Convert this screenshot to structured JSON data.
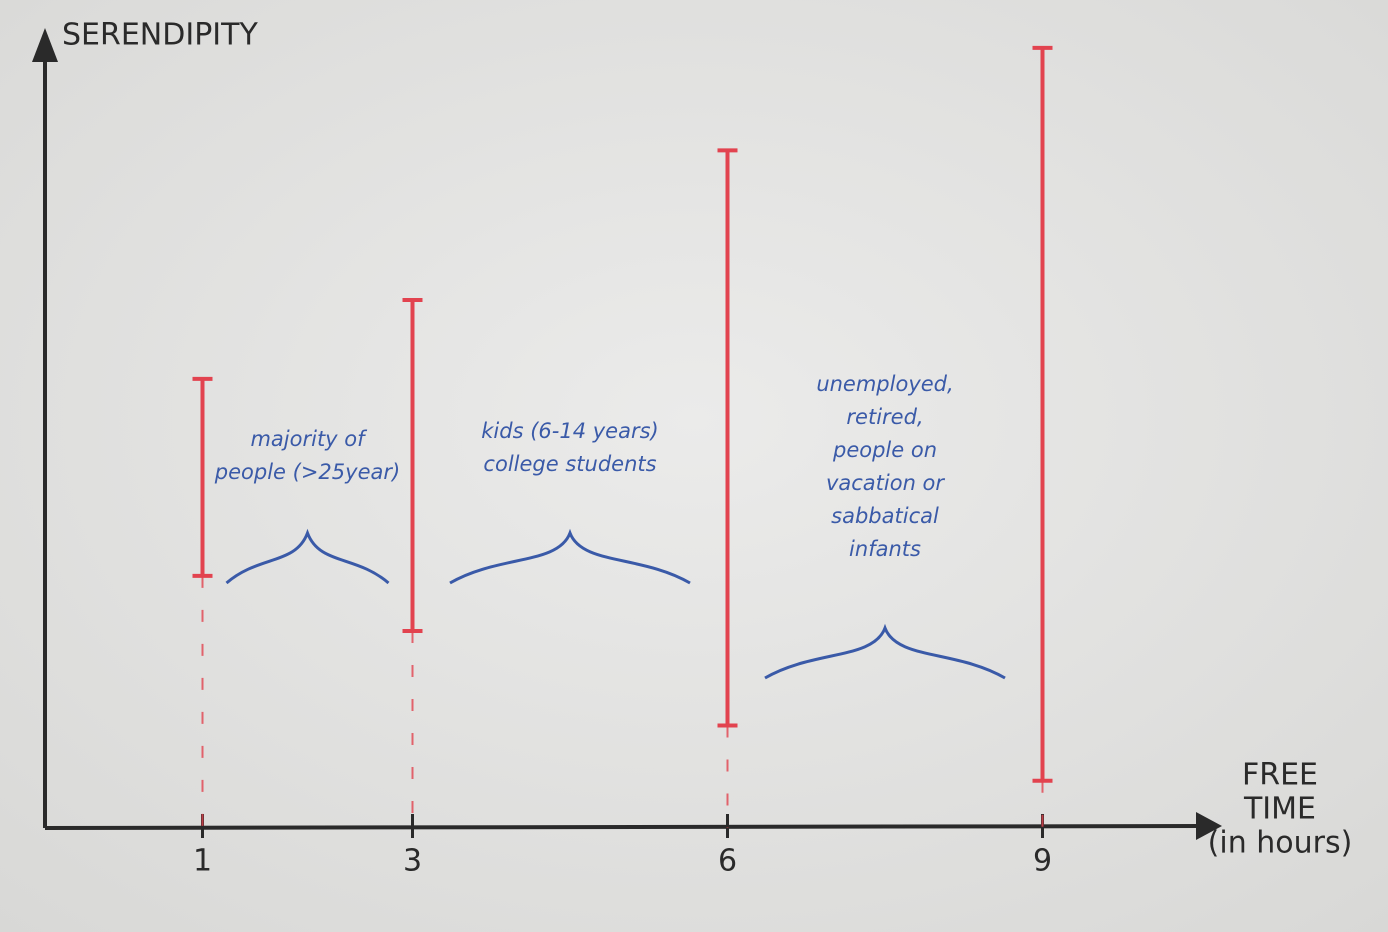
{
  "chart_data": {
    "type": "range",
    "ylabel": "SERENDIPITY",
    "xlabel": [
      "FREE",
      "TIME",
      "(in hours)"
    ],
    "x": [
      1,
      3,
      6,
      9
    ],
    "low": [
      32,
      25,
      13,
      6
    ],
    "high": [
      57,
      67,
      86,
      99
    ],
    "color": "#e2434f",
    "xlim": [
      -0.5,
      10.5
    ],
    "ylim": [
      0,
      100
    ],
    "xticks": [
      1,
      3,
      6,
      9
    ],
    "grid": false,
    "annotations": [
      [
        "majority of",
        "people (>25year)"
      ],
      [
        "kids (6-14 years)",
        "college students"
      ],
      [
        "unemployed,",
        "retired,",
        "people on",
        "vacation or",
        "sabbatical",
        "infants"
      ]
    ]
  }
}
